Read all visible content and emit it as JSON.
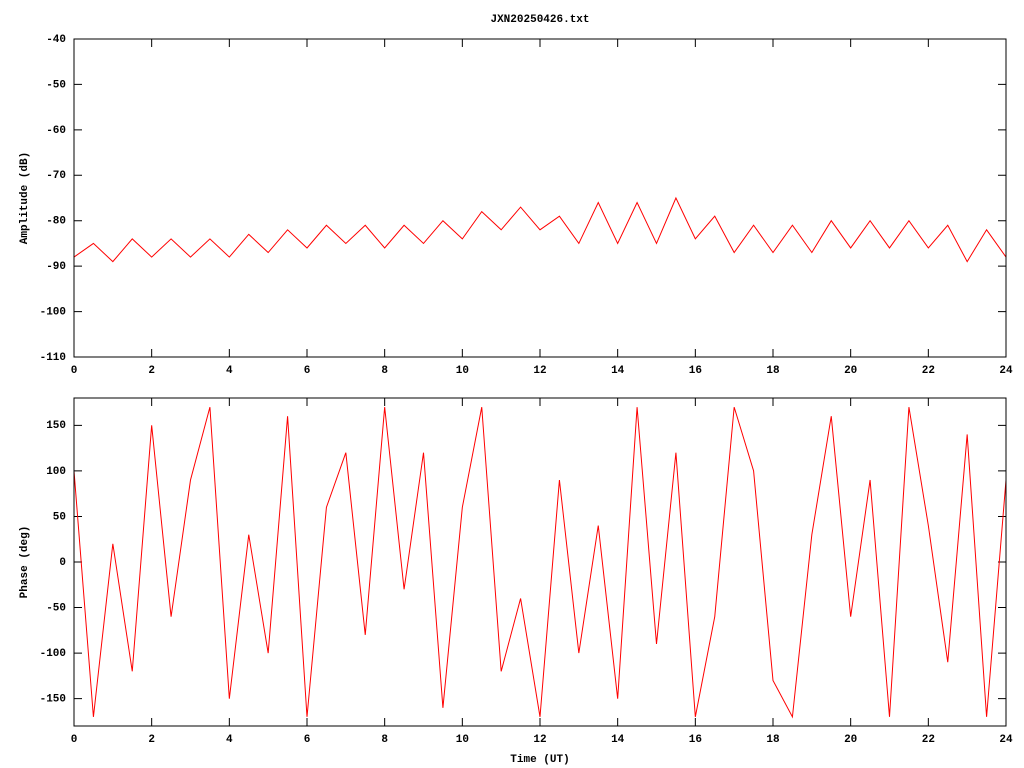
{
  "chart_data": [
    {
      "type": "line",
      "title": "JXN20250426.txt",
      "ylabel": "Amplitude (dB)",
      "x": [
        0,
        0.5,
        1,
        1.5,
        2,
        2.5,
        3,
        3.5,
        4,
        4.5,
        5,
        5.5,
        6,
        6.5,
        7,
        7.5,
        8,
        8.5,
        9,
        9.5,
        10,
        10.5,
        11,
        11.5,
        12,
        12.5,
        13,
        13.5,
        14,
        14.5,
        15,
        15.5,
        16,
        16.5,
        17,
        17.5,
        18,
        18.5,
        19,
        19.5,
        20,
        20.5,
        21,
        21.5,
        22,
        22.5,
        23,
        23.5,
        24
      ],
      "series": [
        {
          "color": "#ff0000",
          "values": [
            -88,
            -85,
            -89,
            -84,
            -88,
            -84,
            -88,
            -84,
            -88,
            -83,
            -87,
            -82,
            -86,
            -81,
            -85,
            -81,
            -86,
            -81,
            -85,
            -80,
            -84,
            -78,
            -82,
            -77,
            -82,
            -79,
            -85,
            -76,
            -85,
            -76,
            -85,
            -75,
            -84,
            -79,
            -87,
            -81,
            -87,
            -81,
            -87,
            -80,
            -86,
            -80,
            -86,
            -80,
            -86,
            -81,
            -89,
            -82,
            -88
          ]
        }
      ],
      "xlim": [
        0,
        24
      ],
      "xticks": [
        0,
        2,
        4,
        6,
        8,
        10,
        12,
        14,
        16,
        18,
        20,
        22,
        24
      ],
      "ylim": [
        -110,
        -40
      ],
      "yticks": [
        -40,
        -50,
        -60,
        -70,
        -80,
        -90,
        -100,
        -110
      ]
    },
    {
      "type": "line",
      "ylabel": "Phase (deg)",
      "xlabel": "Time (UT)",
      "x": [
        0,
        0.5,
        1,
        1.5,
        2,
        2.5,
        3,
        3.5,
        4,
        4.5,
        5,
        5.5,
        6,
        6.5,
        7,
        7.5,
        8,
        8.5,
        9,
        9.5,
        10,
        10.5,
        11,
        11.5,
        12,
        12.5,
        13,
        13.5,
        14,
        14.5,
        15,
        15.5,
        16,
        16.5,
        17,
        17.5,
        18,
        18.5,
        19,
        19.5,
        20,
        20.5,
        21,
        21.5,
        22,
        22.5,
        23,
        23.5,
        24
      ],
      "series": [
        {
          "color": "#ff0000",
          "values": [
            100,
            -170,
            20,
            -120,
            150,
            -60,
            90,
            170,
            -150,
            30,
            -100,
            160,
            -170,
            60,
            120,
            -80,
            170,
            -30,
            120,
            -160,
            60,
            170,
            -120,
            -40,
            -170,
            90,
            -100,
            40,
            -150,
            170,
            -90,
            120,
            -170,
            -60,
            170,
            100,
            -130,
            -170,
            30,
            160,
            -60,
            90,
            -170,
            170,
            40,
            -110,
            140,
            -170,
            90
          ]
        }
      ],
      "xlim": [
        0,
        24
      ],
      "xticks": [
        0,
        2,
        4,
        6,
        8,
        10,
        12,
        14,
        16,
        18,
        20,
        22,
        24
      ],
      "ylim": [
        -180,
        180
      ],
      "yticks": [
        150,
        100,
        50,
        0,
        -50,
        -100,
        -150
      ]
    }
  ]
}
